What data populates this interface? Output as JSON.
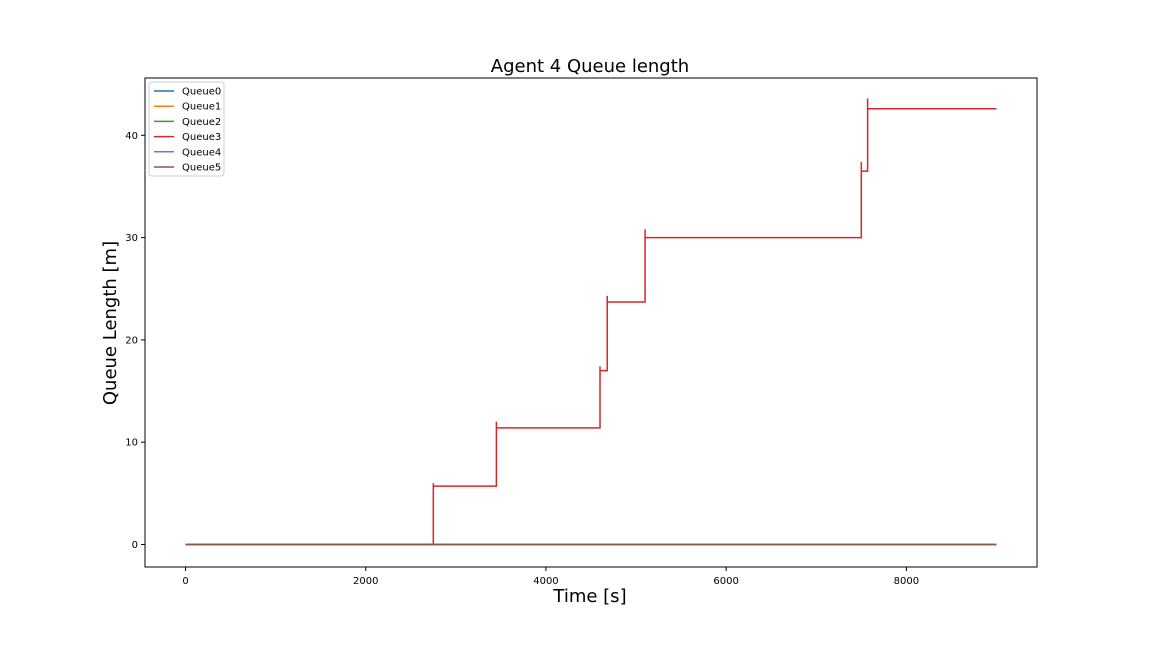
{
  "chart_data": {
    "type": "line",
    "title": "Agent 4 Queue length",
    "xlabel": "Time [s]",
    "ylabel": "Queue Length [m]",
    "xlim": [
      -450,
      9450
    ],
    "ylim": [
      -2.2,
      45.6
    ],
    "xticks": [
      0,
      2000,
      4000,
      6000,
      8000
    ],
    "yticks": [
      0,
      10,
      20,
      30,
      40
    ],
    "grid": false,
    "legend_position": "top-left",
    "series": [
      {
        "name": "Queue0",
        "color": "#1f77b4",
        "x": [
          0,
          9000
        ],
        "y": [
          0,
          0
        ]
      },
      {
        "name": "Queue1",
        "color": "#ff7f0e",
        "x": [
          0,
          9000
        ],
        "y": [
          0,
          0
        ]
      },
      {
        "name": "Queue2",
        "color": "#2ca02c",
        "x": [
          0,
          9000
        ],
        "y": [
          0,
          0
        ]
      },
      {
        "name": "Queue3",
        "color": "#d62728",
        "x": [
          0,
          2750,
          2750,
          2750,
          3450,
          3450,
          3450,
          4600,
          4600,
          4600,
          4680,
          4680,
          4680,
          5100,
          5100,
          5100,
          7500,
          7500,
          7500,
          7570,
          7570,
          7570,
          9000
        ],
        "y": [
          0,
          0,
          6.0,
          5.7,
          5.7,
          12.0,
          11.4,
          11.4,
          17.4,
          17.0,
          17.0,
          24.3,
          23.7,
          23.7,
          30.8,
          30.0,
          30.0,
          37.4,
          36.5,
          36.5,
          43.6,
          42.6,
          42.6
        ]
      },
      {
        "name": "Queue4",
        "color": "#9467bd",
        "x": [
          0,
          9000
        ],
        "y": [
          0,
          0
        ]
      },
      {
        "name": "Queue5",
        "color": "#8c564b",
        "x": [
          0,
          9000
        ],
        "y": [
          0,
          0
        ]
      }
    ]
  }
}
